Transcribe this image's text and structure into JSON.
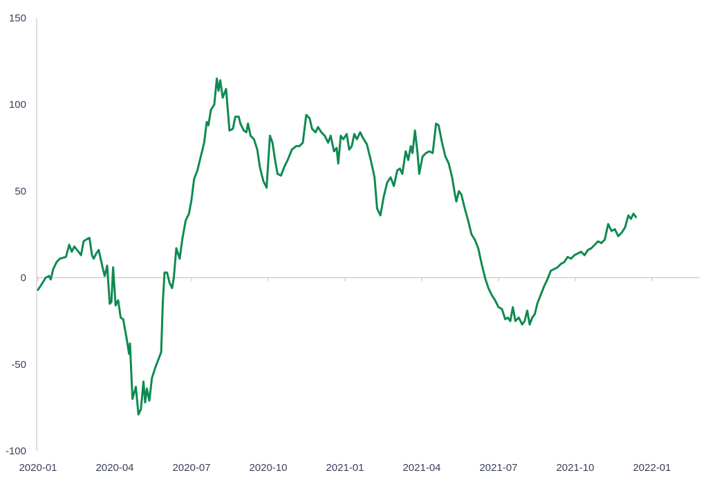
{
  "chart_data": {
    "type": "line",
    "title": "",
    "xlabel": "",
    "ylabel": "",
    "ylim": [
      -100,
      150
    ],
    "yticks": [
      150,
      100,
      50,
      0,
      -50,
      -100
    ],
    "xlim": [
      "2020-01-01",
      "2022-03-22"
    ],
    "xticks": [
      {
        "date": "2020-01-01",
        "label": "2020-01"
      },
      {
        "date": "2020-04-01",
        "label": "2020-04"
      },
      {
        "date": "2020-07-01",
        "label": "2020-07"
      },
      {
        "date": "2020-10-01",
        "label": "2020-10"
      },
      {
        "date": "2021-01-01",
        "label": "2021-01"
      },
      {
        "date": "2021-04-01",
        "label": "2021-04"
      },
      {
        "date": "2021-07-01",
        "label": "2021-07"
      },
      {
        "date": "2021-10-01",
        "label": "2021-10"
      },
      {
        "date": "2022-01-01",
        "label": "2022-01"
      }
    ],
    "grid": false,
    "legend": "none",
    "series": [
      {
        "color": "#0e8a50",
        "points": [
          [
            "2020-01-01",
            -7
          ],
          [
            "2020-01-05",
            -4
          ],
          [
            "2020-01-10",
            0
          ],
          [
            "2020-01-14",
            1
          ],
          [
            "2020-01-16",
            -1
          ],
          [
            "2020-01-19",
            5
          ],
          [
            "2020-01-23",
            9
          ],
          [
            "2020-01-27",
            11
          ],
          [
            "2020-02-03",
            12
          ],
          [
            "2020-02-07",
            19
          ],
          [
            "2020-02-10",
            15
          ],
          [
            "2020-02-13",
            18
          ],
          [
            "2020-02-18",
            15
          ],
          [
            "2020-02-21",
            13
          ],
          [
            "2020-02-24",
            21
          ],
          [
            "2020-02-27",
            22
          ],
          [
            "2020-03-02",
            23
          ],
          [
            "2020-03-05",
            13
          ],
          [
            "2020-03-07",
            11
          ],
          [
            "2020-03-10",
            14
          ],
          [
            "2020-03-13",
            16
          ],
          [
            "2020-03-18",
            5
          ],
          [
            "2020-03-20",
            1
          ],
          [
            "2020-03-23",
            7
          ],
          [
            "2020-03-26",
            -15
          ],
          [
            "2020-03-28",
            -14
          ],
          [
            "2020-03-30",
            6
          ],
          [
            "2020-04-02",
            -16
          ],
          [
            "2020-04-05",
            -13
          ],
          [
            "2020-04-08",
            -23
          ],
          [
            "2020-04-11",
            -24
          ],
          [
            "2020-04-15",
            -35
          ],
          [
            "2020-04-18",
            -44
          ],
          [
            "2020-04-19",
            -38
          ],
          [
            "2020-04-22",
            -70
          ],
          [
            "2020-04-26",
            -63
          ],
          [
            "2020-04-29",
            -79
          ],
          [
            "2020-05-02",
            -76
          ],
          [
            "2020-05-05",
            -60
          ],
          [
            "2020-05-07",
            -72
          ],
          [
            "2020-05-09",
            -64
          ],
          [
            "2020-05-12",
            -71
          ],
          [
            "2020-05-15",
            -58
          ],
          [
            "2020-05-19",
            -52
          ],
          [
            "2020-05-26",
            -43
          ],
          [
            "2020-05-28",
            -14
          ],
          [
            "2020-05-30",
            3
          ],
          [
            "2020-06-02",
            3
          ],
          [
            "2020-06-05",
            -3
          ],
          [
            "2020-06-08",
            -6
          ],
          [
            "2020-06-10",
            0
          ],
          [
            "2020-06-13",
            17
          ],
          [
            "2020-06-17",
            11
          ],
          [
            "2020-06-20",
            22
          ],
          [
            "2020-06-24",
            33
          ],
          [
            "2020-06-28",
            37
          ],
          [
            "2020-07-01",
            45
          ],
          [
            "2020-07-04",
            57
          ],
          [
            "2020-07-08",
            62
          ],
          [
            "2020-07-12",
            70
          ],
          [
            "2020-07-16",
            78
          ],
          [
            "2020-07-19",
            90
          ],
          [
            "2020-07-21",
            88
          ],
          [
            "2020-07-24",
            97
          ],
          [
            "2020-07-28",
            100
          ],
          [
            "2020-07-31",
            115
          ],
          [
            "2020-08-02",
            108
          ],
          [
            "2020-08-04",
            114
          ],
          [
            "2020-08-07",
            104
          ],
          [
            "2020-08-11",
            109
          ],
          [
            "2020-08-15",
            85
          ],
          [
            "2020-08-19",
            86
          ],
          [
            "2020-08-22",
            93
          ],
          [
            "2020-08-26",
            93
          ],
          [
            "2020-08-28",
            89
          ],
          [
            "2020-09-01",
            85
          ],
          [
            "2020-09-04",
            84
          ],
          [
            "2020-09-06",
            89
          ],
          [
            "2020-09-09",
            82
          ],
          [
            "2020-09-13",
            80
          ],
          [
            "2020-09-17",
            74
          ],
          [
            "2020-09-20",
            64
          ],
          [
            "2020-09-24",
            56
          ],
          [
            "2020-09-28",
            52
          ],
          [
            "2020-10-02",
            82
          ],
          [
            "2020-10-05",
            78
          ],
          [
            "2020-10-08",
            68
          ],
          [
            "2020-10-11",
            60
          ],
          [
            "2020-10-15",
            59
          ],
          [
            "2020-10-19",
            64
          ],
          [
            "2020-10-23",
            68
          ],
          [
            "2020-10-28",
            74
          ],
          [
            "2020-11-02",
            76
          ],
          [
            "2020-11-06",
            76
          ],
          [
            "2020-11-10",
            78
          ],
          [
            "2020-11-14",
            94
          ],
          [
            "2020-11-18",
            92
          ],
          [
            "2020-11-21",
            86
          ],
          [
            "2020-11-25",
            84
          ],
          [
            "2020-11-28",
            87
          ],
          [
            "2020-12-02",
            84
          ],
          [
            "2020-12-06",
            82
          ],
          [
            "2020-12-10",
            78
          ],
          [
            "2020-12-13",
            82
          ],
          [
            "2020-12-17",
            73
          ],
          [
            "2020-12-20",
            75
          ],
          [
            "2020-12-22",
            66
          ],
          [
            "2020-12-25",
            82
          ],
          [
            "2020-12-28",
            80
          ],
          [
            "2021-01-01",
            83
          ],
          [
            "2021-01-04",
            74
          ],
          [
            "2021-01-07",
            76
          ],
          [
            "2021-01-10",
            83
          ],
          [
            "2021-01-13",
            80
          ],
          [
            "2021-01-17",
            84
          ],
          [
            "2021-01-20",
            81
          ],
          [
            "2021-01-25",
            77
          ],
          [
            "2021-01-30",
            67
          ],
          [
            "2021-02-03",
            58
          ],
          [
            "2021-02-06",
            40
          ],
          [
            "2021-02-10",
            36
          ],
          [
            "2021-02-14",
            47
          ],
          [
            "2021-02-18",
            55
          ],
          [
            "2021-02-22",
            58
          ],
          [
            "2021-02-26",
            53
          ],
          [
            "2021-03-02",
            62
          ],
          [
            "2021-03-05",
            63
          ],
          [
            "2021-03-08",
            60
          ],
          [
            "2021-03-12",
            73
          ],
          [
            "2021-03-15",
            68
          ],
          [
            "2021-03-18",
            76
          ],
          [
            "2021-03-20",
            72
          ],
          [
            "2021-03-23",
            85
          ],
          [
            "2021-03-26",
            72
          ],
          [
            "2021-03-28",
            60
          ],
          [
            "2021-04-01",
            70
          ],
          [
            "2021-04-05",
            72
          ],
          [
            "2021-04-09",
            73
          ],
          [
            "2021-04-13",
            72
          ],
          [
            "2021-04-17",
            89
          ],
          [
            "2021-04-20",
            88
          ],
          [
            "2021-04-24",
            78
          ],
          [
            "2021-04-28",
            70
          ],
          [
            "2021-05-02",
            66
          ],
          [
            "2021-05-06",
            58
          ],
          [
            "2021-05-09",
            49
          ],
          [
            "2021-05-11",
            44
          ],
          [
            "2021-05-14",
            50
          ],
          [
            "2021-05-17",
            48
          ],
          [
            "2021-05-21",
            40
          ],
          [
            "2021-05-25",
            33
          ],
          [
            "2021-05-29",
            25
          ],
          [
            "2021-06-02",
            22
          ],
          [
            "2021-06-06",
            17
          ],
          [
            "2021-06-10",
            8
          ],
          [
            "2021-06-14",
            0
          ],
          [
            "2021-06-18",
            -6
          ],
          [
            "2021-06-22",
            -10
          ],
          [
            "2021-06-26",
            -13
          ],
          [
            "2021-06-30",
            -17
          ],
          [
            "2021-07-04",
            -18
          ],
          [
            "2021-07-08",
            -24
          ],
          [
            "2021-07-11",
            -23
          ],
          [
            "2021-07-14",
            -25
          ],
          [
            "2021-07-17",
            -17
          ],
          [
            "2021-07-20",
            -25
          ],
          [
            "2021-07-24",
            -23
          ],
          [
            "2021-07-28",
            -27
          ],
          [
            "2021-07-31",
            -25
          ],
          [
            "2021-08-03",
            -19
          ],
          [
            "2021-08-06",
            -27
          ],
          [
            "2021-08-09",
            -23
          ],
          [
            "2021-08-12",
            -21
          ],
          [
            "2021-08-15",
            -15
          ],
          [
            "2021-08-19",
            -10
          ],
          [
            "2021-08-23",
            -5
          ],
          [
            "2021-08-27",
            -1
          ],
          [
            "2021-08-31",
            4
          ],
          [
            "2021-09-04",
            5
          ],
          [
            "2021-09-08",
            6
          ],
          [
            "2021-09-12",
            8
          ],
          [
            "2021-09-16",
            9
          ],
          [
            "2021-09-20",
            12
          ],
          [
            "2021-09-24",
            11
          ],
          [
            "2021-09-28",
            13
          ],
          [
            "2021-10-02",
            14
          ],
          [
            "2021-10-06",
            15
          ],
          [
            "2021-10-10",
            13
          ],
          [
            "2021-10-14",
            16
          ],
          [
            "2021-10-18",
            17
          ],
          [
            "2021-10-22",
            19
          ],
          [
            "2021-10-26",
            21
          ],
          [
            "2021-10-30",
            20
          ],
          [
            "2021-11-03",
            22
          ],
          [
            "2021-11-07",
            31
          ],
          [
            "2021-11-11",
            27
          ],
          [
            "2021-11-15",
            28
          ],
          [
            "2021-11-19",
            24
          ],
          [
            "2021-11-23",
            26
          ],
          [
            "2021-11-27",
            29
          ],
          [
            "2021-12-01",
            36
          ],
          [
            "2021-12-04",
            34
          ],
          [
            "2021-12-07",
            37
          ],
          [
            "2021-12-10",
            35
          ]
        ]
      }
    ]
  }
}
